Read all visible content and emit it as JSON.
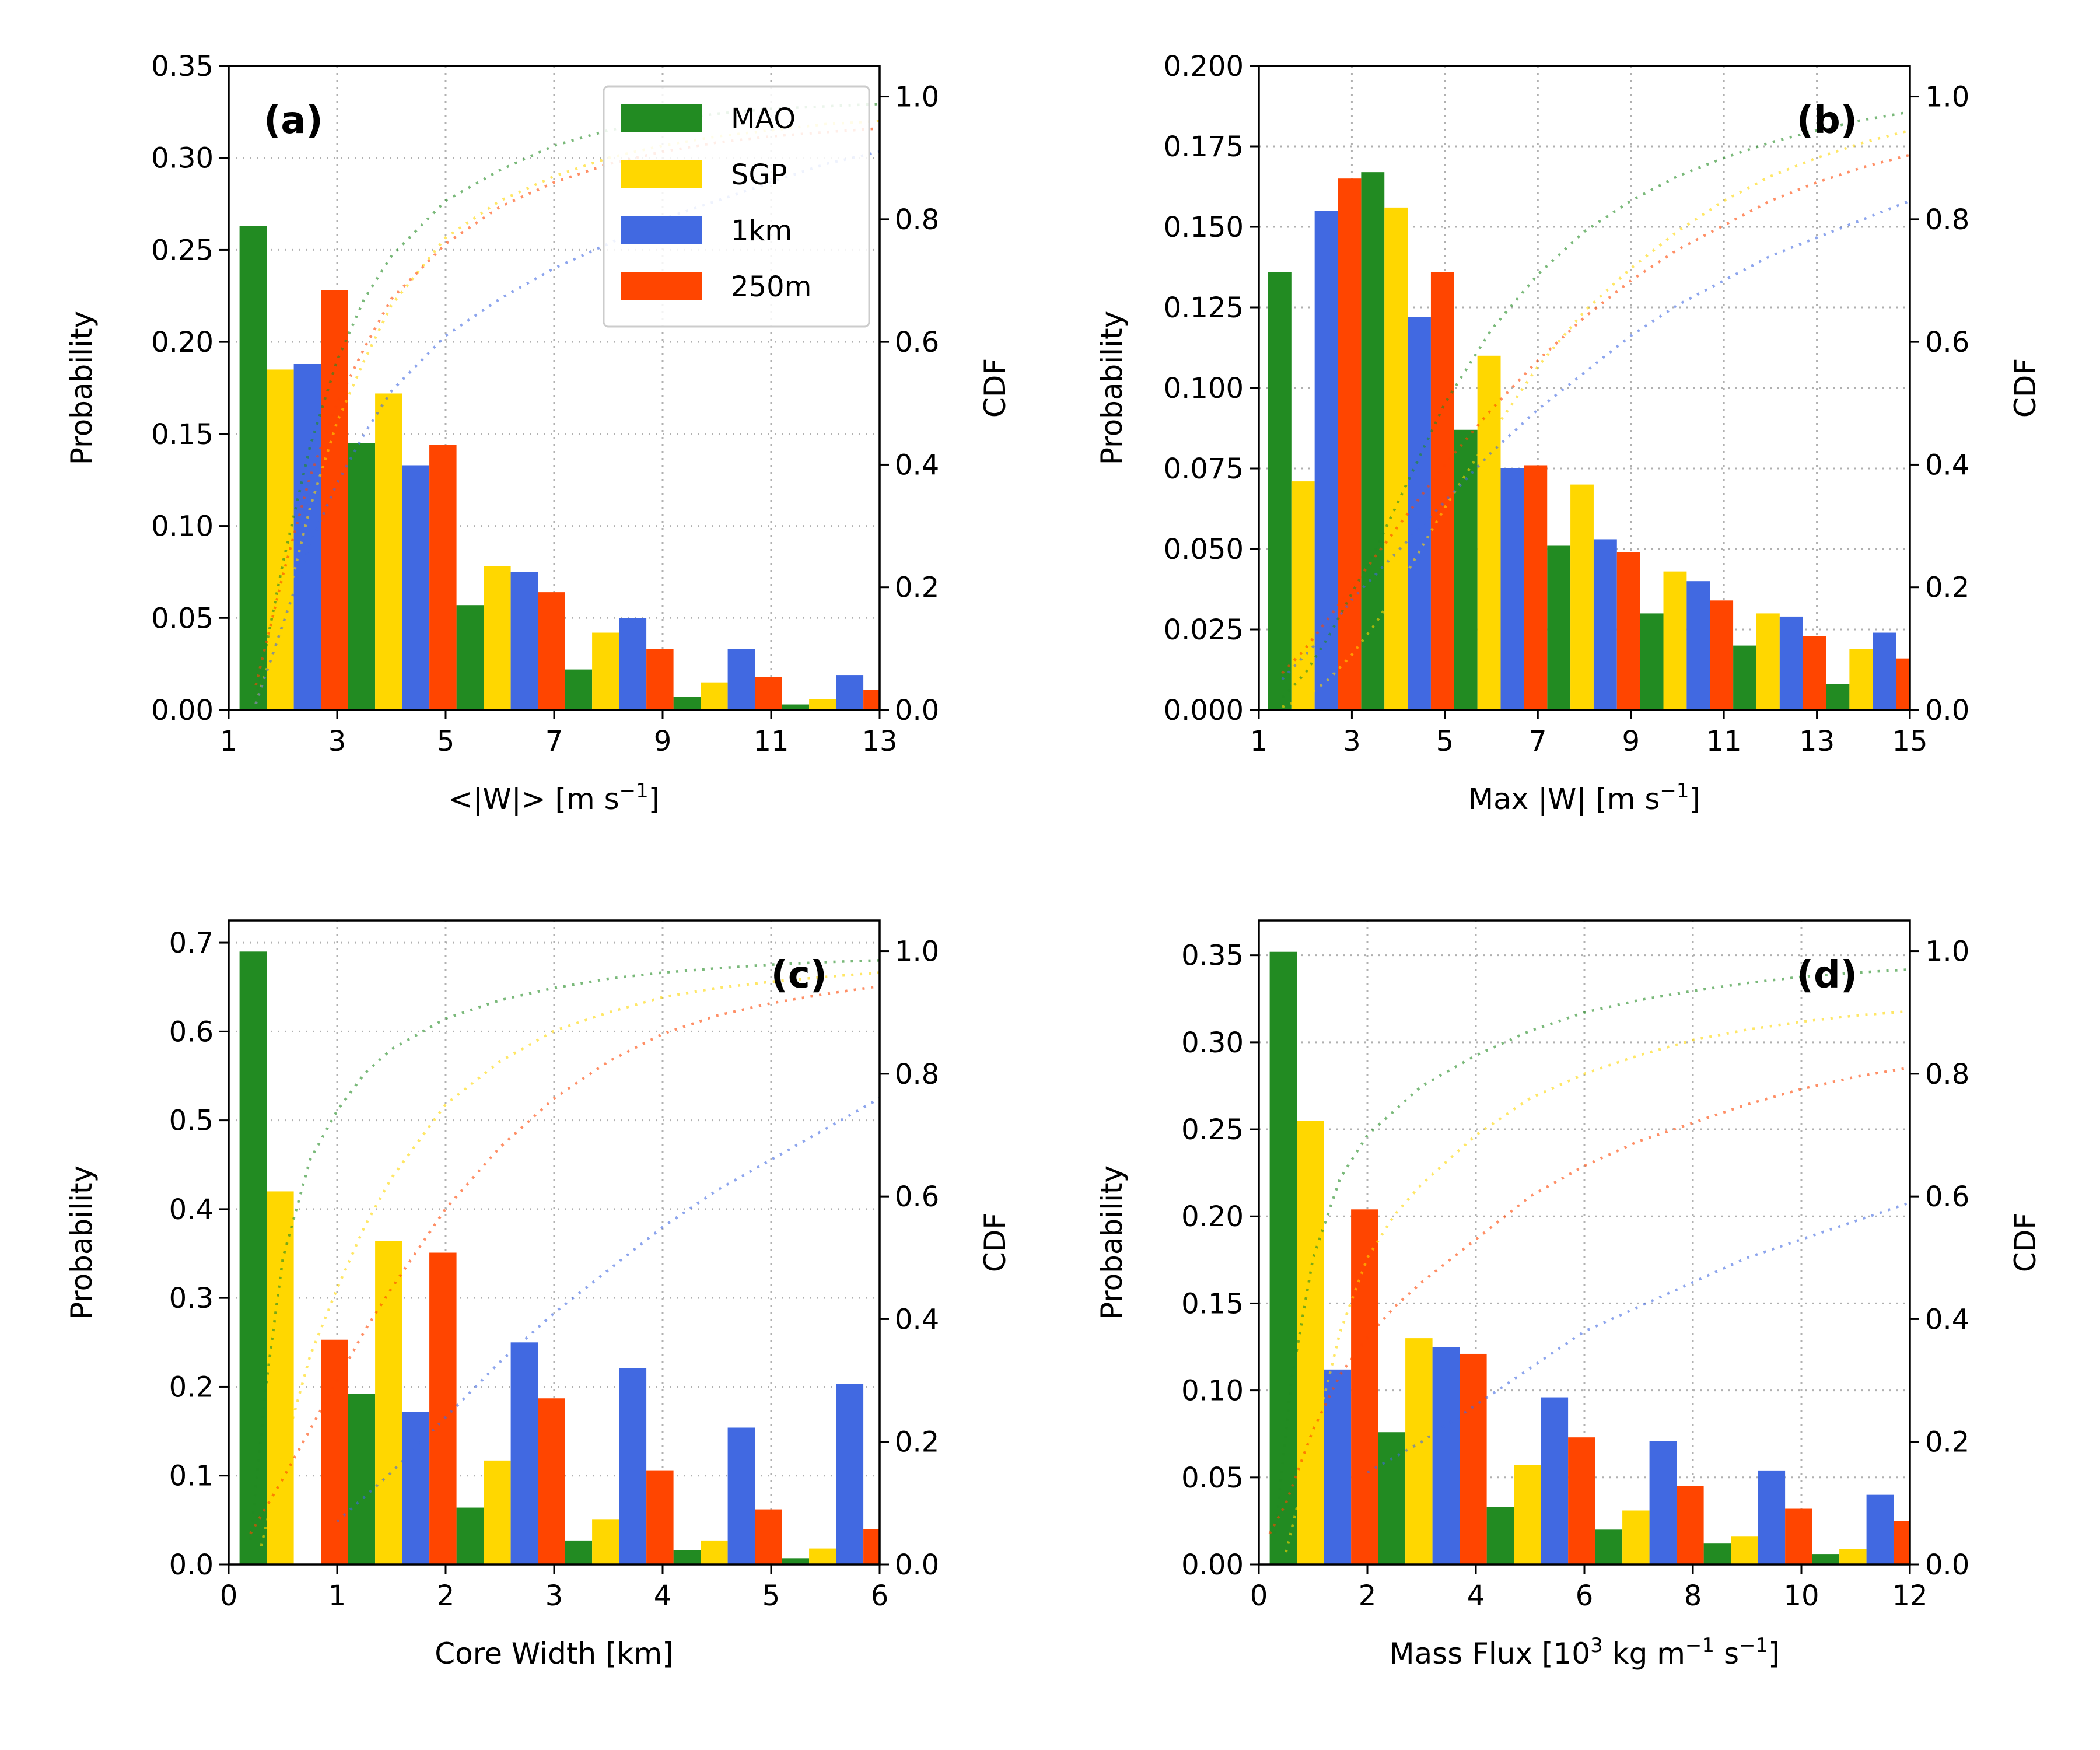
{
  "colors": {
    "MAO": "#228B22",
    "SGP": "#FFD700",
    "1km": "#4169E1",
    "250m": "#FF4500"
  },
  "series_names": [
    "MAO",
    "SGP",
    "1km",
    "250m"
  ],
  "chart_data": [
    {
      "id": "a",
      "type": "bar",
      "panel_label": "(a)",
      "xlabel": "<|W|> [m s",
      "xlabel_sup": "−1",
      "xlabel_tail": "]",
      "ylabel": "Probability",
      "y2label": "CDF",
      "xlim": [
        1,
        13
      ],
      "ylim": [
        0,
        0.35
      ],
      "y2lim": [
        0,
        1.05
      ],
      "xticks": [
        "1",
        "3",
        "5",
        "7",
        "9",
        "11",
        "13"
      ],
      "yticks": [
        "0.00",
        "0.05",
        "0.10",
        "0.15",
        "0.20",
        "0.25",
        "0.30",
        "0.35"
      ],
      "y2ticks": [
        "0.0",
        "0.2",
        "0.4",
        "0.6",
        "0.8",
        "1.0"
      ],
      "legend": "top-right",
      "grid": true,
      "bin_edges": [
        1.2,
        3.2,
        5.2,
        7.2,
        9.2,
        11.2,
        13.2
      ],
      "series": [
        {
          "name": "MAO",
          "values": [
            0.263,
            0.145,
            0.057,
            0.022,
            0.007,
            0.003
          ]
        },
        {
          "name": "SGP",
          "values": [
            0.185,
            0.172,
            0.078,
            0.042,
            0.015,
            0.006
          ]
        },
        {
          "name": "1km",
          "values": [
            0.188,
            0.133,
            0.075,
            0.05,
            0.033,
            0.019
          ]
        },
        {
          "name": "250m",
          "values": [
            0.228,
            0.144,
            0.064,
            0.033,
            0.018,
            0.011
          ]
        }
      ],
      "cdf": [
        {
          "name": "MAO",
          "x": [
            1.5,
            2,
            2.5,
            3,
            3.5,
            4,
            5,
            6,
            7,
            8,
            9,
            10,
            11,
            12,
            13
          ],
          "y": [
            0.02,
            0.24,
            0.43,
            0.57,
            0.67,
            0.74,
            0.83,
            0.88,
            0.92,
            0.945,
            0.96,
            0.972,
            0.98,
            0.984,
            0.988
          ]
        },
        {
          "name": "SGP",
          "x": [
            1.5,
            2,
            2.5,
            3,
            3.5,
            4,
            5,
            6,
            7,
            8,
            9,
            10,
            11,
            12,
            13
          ],
          "y": [
            0.01,
            0.15,
            0.33,
            0.47,
            0.57,
            0.66,
            0.77,
            0.83,
            0.87,
            0.9,
            0.92,
            0.935,
            0.945,
            0.955,
            0.96
          ]
        },
        {
          "name": "1km",
          "x": [
            1.5,
            2,
            2.5,
            3,
            3.5,
            4,
            5,
            6,
            7,
            8,
            9,
            10,
            11,
            12,
            13
          ],
          "y": [
            0.01,
            0.14,
            0.27,
            0.37,
            0.45,
            0.52,
            0.61,
            0.67,
            0.72,
            0.76,
            0.8,
            0.83,
            0.86,
            0.89,
            0.91
          ]
        },
        {
          "name": "250m",
          "x": [
            1.5,
            2,
            2.5,
            3,
            3.5,
            4,
            5,
            6,
            7,
            8,
            9,
            10,
            11,
            12,
            13
          ],
          "y": [
            0.04,
            0.22,
            0.38,
            0.5,
            0.59,
            0.67,
            0.76,
            0.82,
            0.86,
            0.89,
            0.91,
            0.925,
            0.935,
            0.942,
            0.948
          ]
        }
      ]
    },
    {
      "id": "b",
      "type": "bar",
      "panel_label": "(b)",
      "xlabel": "Max |W| [m s",
      "xlabel_sup": "−1",
      "xlabel_tail": "]",
      "ylabel": "Probability",
      "y2label": "CDF",
      "xlim": [
        1,
        15
      ],
      "ylim": [
        0,
        0.2
      ],
      "y2lim": [
        0,
        1.05
      ],
      "xticks": [
        "1",
        "3",
        "5",
        "7",
        "9",
        "11",
        "13",
        "15"
      ],
      "yticks": [
        "0.000",
        "0.025",
        "0.050",
        "0.075",
        "0.100",
        "0.125",
        "0.150",
        "0.175",
        "0.200"
      ],
      "y2ticks": [
        "0.0",
        "0.2",
        "0.4",
        "0.6",
        "0.8",
        "1.0"
      ],
      "grid": true,
      "bin_edges": [
        1.2,
        3.2,
        5.2,
        7.2,
        9.2,
        11.2,
        13.2,
        15.2
      ],
      "series": [
        {
          "name": "MAO",
          "values": [
            0.136,
            0.167,
            0.087,
            0.051,
            0.03,
            0.02,
            0.008
          ]
        },
        {
          "name": "SGP",
          "values": [
            0.071,
            0.156,
            0.11,
            0.07,
            0.043,
            0.03,
            0.019
          ]
        },
        {
          "name": "1km",
          "values": [
            0.155,
            0.122,
            0.075,
            0.053,
            0.04,
            0.029,
            0.024
          ]
        },
        {
          "name": "250m",
          "values": [
            0.165,
            0.136,
            0.076,
            0.049,
            0.034,
            0.023,
            0.016
          ]
        }
      ],
      "cdf": [
        {
          "name": "MAO",
          "x": [
            1.5,
            2,
            2.5,
            3,
            3.5,
            4,
            5,
            6,
            7,
            8,
            9,
            10,
            11,
            12,
            13,
            14,
            15
          ],
          "y": [
            0.02,
            0.06,
            0.12,
            0.19,
            0.26,
            0.34,
            0.5,
            0.62,
            0.71,
            0.78,
            0.83,
            0.87,
            0.9,
            0.925,
            0.945,
            0.962,
            0.975
          ]
        },
        {
          "name": "SGP",
          "x": [
            1.5,
            2,
            2.5,
            3,
            3.5,
            4,
            5,
            6,
            7,
            8,
            9,
            10,
            11,
            12,
            13,
            14,
            15
          ],
          "y": [
            0.005,
            0.02,
            0.05,
            0.09,
            0.14,
            0.2,
            0.33,
            0.45,
            0.56,
            0.65,
            0.72,
            0.78,
            0.83,
            0.87,
            0.9,
            0.925,
            0.945
          ]
        },
        {
          "name": "1km",
          "x": [
            1.5,
            2,
            2.5,
            3,
            3.5,
            4,
            5,
            6,
            7,
            8,
            9,
            10,
            11,
            12,
            13,
            14,
            15
          ],
          "y": [
            0.05,
            0.09,
            0.13,
            0.18,
            0.22,
            0.26,
            0.34,
            0.42,
            0.49,
            0.55,
            0.61,
            0.66,
            0.7,
            0.74,
            0.77,
            0.8,
            0.83
          ]
        },
        {
          "name": "250m",
          "x": [
            1.5,
            2,
            2.5,
            3,
            3.5,
            4,
            5,
            6,
            7,
            8,
            9,
            10,
            11,
            12,
            13,
            14,
            15
          ],
          "y": [
            0.06,
            0.1,
            0.15,
            0.2,
            0.25,
            0.3,
            0.4,
            0.49,
            0.57,
            0.64,
            0.7,
            0.75,
            0.79,
            0.83,
            0.86,
            0.885,
            0.905
          ]
        }
      ]
    },
    {
      "id": "c",
      "type": "bar",
      "panel_label": "(c)",
      "xlabel": "Core Width [km]",
      "xlabel_sup": "",
      "xlabel_tail": "",
      "ylabel": "Probability",
      "y2label": "CDF",
      "xlim": [
        0,
        6
      ],
      "ylim": [
        0,
        0.725
      ],
      "y2lim": [
        0,
        1.05
      ],
      "xticks": [
        "0",
        "1",
        "2",
        "3",
        "4",
        "5",
        "6"
      ],
      "yticks": [
        "0.0",
        "0.1",
        "0.2",
        "0.3",
        "0.4",
        "0.5",
        "0.6",
        "0.7"
      ],
      "y2ticks": [
        "0.0",
        "0.2",
        "0.4",
        "0.6",
        "0.8",
        "1.0"
      ],
      "grid": true,
      "bin_edges": [
        0.1,
        1.1,
        2.1,
        3.1,
        4.1,
        5.1,
        6.1
      ],
      "series": [
        {
          "name": "MAO",
          "values": [
            0.69,
            0.192,
            0.064,
            0.027,
            0.016,
            0.007
          ]
        },
        {
          "name": "SGP",
          "values": [
            0.42,
            0.364,
            0.117,
            0.051,
            0.027,
            0.018
          ]
        },
        {
          "name": "1km",
          "values": [
            0.0,
            0.172,
            0.25,
            0.221,
            0.154,
            0.203
          ]
        },
        {
          "name": "250m",
          "values": [
            0.253,
            0.351,
            0.187,
            0.106,
            0.062,
            0.04
          ]
        }
      ],
      "cdf": [
        {
          "name": "MAO",
          "x": [
            0.2,
            0.35,
            0.5,
            0.75,
            1,
            1.25,
            1.5,
            2,
            2.5,
            3,
            3.5,
            4,
            4.5,
            5,
            5.5,
            6
          ],
          "y": [
            0.04,
            0.3,
            0.5,
            0.66,
            0.74,
            0.8,
            0.84,
            0.89,
            0.92,
            0.94,
            0.955,
            0.965,
            0.972,
            0.978,
            0.982,
            0.985
          ]
        },
        {
          "name": "SGP",
          "x": [
            0.3,
            0.5,
            0.75,
            1,
            1.25,
            1.5,
            2,
            2.5,
            3,
            3.5,
            4,
            4.5,
            5,
            5.5,
            6
          ],
          "y": [
            0.03,
            0.18,
            0.34,
            0.45,
            0.55,
            0.63,
            0.75,
            0.82,
            0.87,
            0.9,
            0.925,
            0.94,
            0.95,
            0.958,
            0.965
          ]
        },
        {
          "name": "1km",
          "x": [
            1.0,
            1.25,
            1.5,
            2,
            2.5,
            3,
            3.5,
            4,
            4.5,
            5,
            5.5,
            6
          ],
          "y": [
            0.07,
            0.11,
            0.15,
            0.24,
            0.33,
            0.41,
            0.48,
            0.55,
            0.61,
            0.66,
            0.71,
            0.76
          ]
        },
        {
          "name": "250m",
          "x": [
            0.2,
            0.5,
            0.75,
            1,
            1.25,
            1.5,
            2,
            2.5,
            3,
            3.5,
            4,
            4.5,
            5,
            5.5,
            6
          ],
          "y": [
            0.05,
            0.14,
            0.22,
            0.3,
            0.38,
            0.45,
            0.58,
            0.68,
            0.76,
            0.82,
            0.865,
            0.895,
            0.915,
            0.93,
            0.943
          ]
        }
      ]
    },
    {
      "id": "d",
      "type": "bar",
      "panel_label": "(d)",
      "xlabel": "Mass Flux [10",
      "xlabel_sup": "3",
      "xlabel_tail": " kg m",
      "xlabel_sup2": "−1",
      "xlabel_tail2": " s",
      "xlabel_sup3": "−1",
      "xlabel_tail3": "]",
      "ylabel": "Probability",
      "y2label": "CDF",
      "xlim": [
        0,
        12
      ],
      "ylim": [
        0,
        0.37
      ],
      "y2lim": [
        0,
        1.05
      ],
      "xticks": [
        "0",
        "2",
        "4",
        "6",
        "8",
        "10",
        "12"
      ],
      "yticks": [
        "0.00",
        "0.05",
        "0.10",
        "0.15",
        "0.20",
        "0.25",
        "0.30",
        "0.35"
      ],
      "y2ticks": [
        "0.0",
        "0.2",
        "0.4",
        "0.6",
        "0.8",
        "1.0"
      ],
      "grid": true,
      "bin_edges": [
        0.2,
        2.2,
        4.2,
        6.2,
        8.2,
        10.2,
        12.2
      ],
      "series": [
        {
          "name": "MAO",
          "values": [
            0.352,
            0.076,
            0.033,
            0.02,
            0.012,
            0.006
          ]
        },
        {
          "name": "SGP",
          "values": [
            0.255,
            0.13,
            0.057,
            0.031,
            0.016,
            0.009
          ]
        },
        {
          "name": "1km",
          "values": [
            0.112,
            0.125,
            0.096,
            0.071,
            0.054,
            0.04
          ]
        },
        {
          "name": "250m",
          "values": [
            0.204,
            0.121,
            0.073,
            0.045,
            0.032,
            0.025
          ]
        }
      ],
      "cdf": [
        {
          "name": "MAO",
          "x": [
            0.3,
            0.6,
            1,
            1.5,
            2,
            2.5,
            3,
            4,
            5,
            6,
            7,
            8,
            9,
            10,
            11,
            12
          ],
          "y": [
            0.05,
            0.3,
            0.5,
            0.63,
            0.7,
            0.74,
            0.78,
            0.83,
            0.87,
            0.9,
            0.92,
            0.935,
            0.948,
            0.958,
            0.965,
            0.97
          ]
        },
        {
          "name": "SGP",
          "x": [
            0.5,
            1,
            1.5,
            2,
            2.5,
            3,
            4,
            5,
            6,
            7,
            8,
            9,
            10,
            11,
            12
          ],
          "y": [
            0.02,
            0.2,
            0.38,
            0.5,
            0.57,
            0.62,
            0.7,
            0.76,
            0.8,
            0.83,
            0.855,
            0.872,
            0.885,
            0.895,
            0.902
          ]
        },
        {
          "name": "1km",
          "x": [
            2.0,
            3,
            4,
            5,
            6,
            7,
            8,
            9,
            10,
            11,
            12
          ],
          "y": [
            0.15,
            0.2,
            0.26,
            0.32,
            0.38,
            0.42,
            0.46,
            0.5,
            0.53,
            0.56,
            0.59
          ]
        },
        {
          "name": "250m",
          "x": [
            0.2,
            0.5,
            1,
            1.5,
            2,
            2.5,
            3,
            4,
            5,
            6,
            7,
            8,
            9,
            10,
            11,
            12
          ],
          "y": [
            0.05,
            0.1,
            0.22,
            0.31,
            0.37,
            0.42,
            0.46,
            0.53,
            0.6,
            0.65,
            0.69,
            0.72,
            0.75,
            0.775,
            0.795,
            0.81
          ]
        }
      ]
    }
  ]
}
